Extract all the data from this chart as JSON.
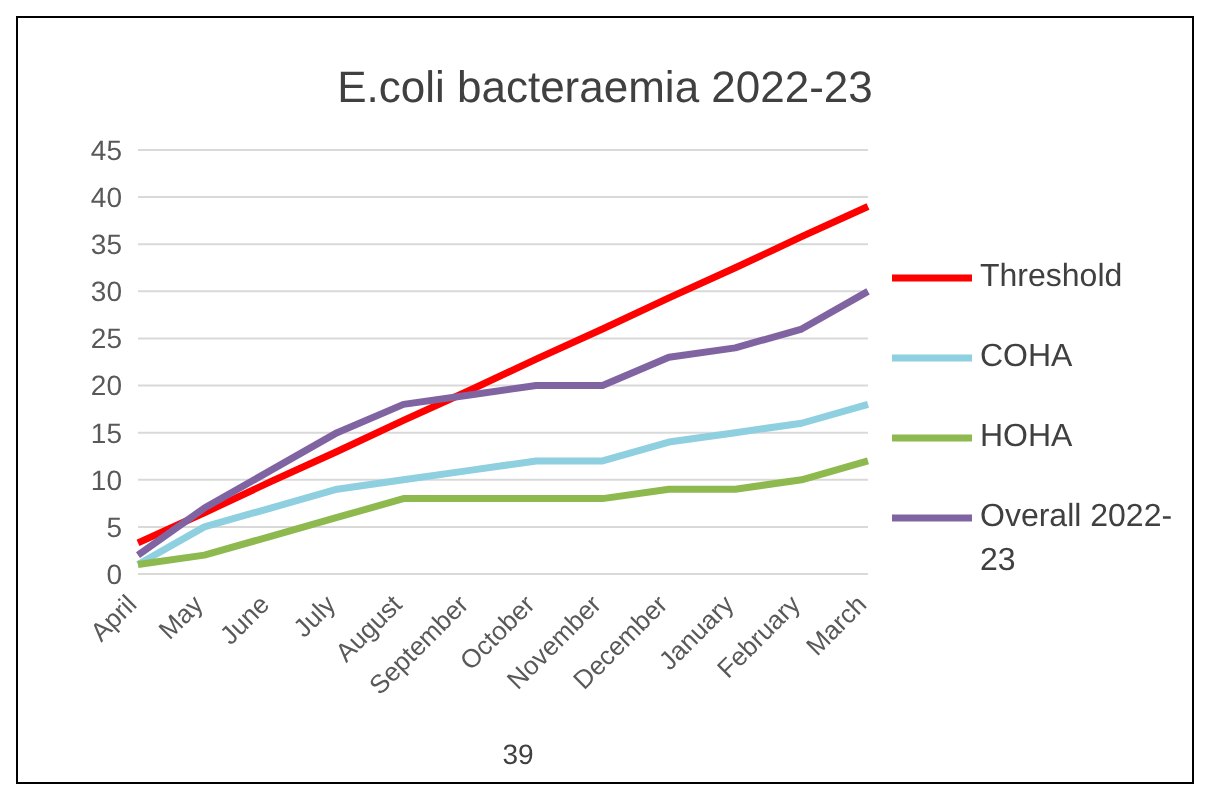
{
  "chart_data": {
    "type": "line",
    "title": "E.coli bacteraemia 2022-23",
    "categories": [
      "April",
      "May",
      "June",
      "July",
      "August",
      "September",
      "October",
      "November",
      "December",
      "January",
      "February",
      "March"
    ],
    "series": [
      {
        "name": "Threshold",
        "color": "#ff0000",
        "values": [
          3.3,
          6.5,
          9.8,
          13,
          16.3,
          19.5,
          22.8,
          26,
          29.3,
          32.5,
          35.8,
          39
        ]
      },
      {
        "name": "COHA",
        "color": "#8ecfe0",
        "values": [
          1,
          5,
          7,
          9,
          10,
          11,
          12,
          12,
          14,
          15,
          16,
          18
        ]
      },
      {
        "name": "HOHA",
        "color": "#8db94e",
        "values": [
          1,
          2,
          4,
          6,
          8,
          8,
          8,
          8,
          9,
          9,
          10,
          12
        ]
      },
      {
        "name": "Overall 2022-23",
        "color": "#8064a2",
        "values": [
          2,
          7,
          11,
          15,
          18,
          19,
          20,
          20,
          23,
          24,
          26,
          30
        ]
      }
    ],
    "ylim": [
      0,
      45
    ],
    "yticks": [
      0,
      5,
      10,
      15,
      20,
      25,
      30,
      35,
      40,
      45
    ],
    "grid": "y",
    "legend": "right",
    "marker": "none",
    "line_style": "solid",
    "annotations": [
      "39"
    ]
  }
}
